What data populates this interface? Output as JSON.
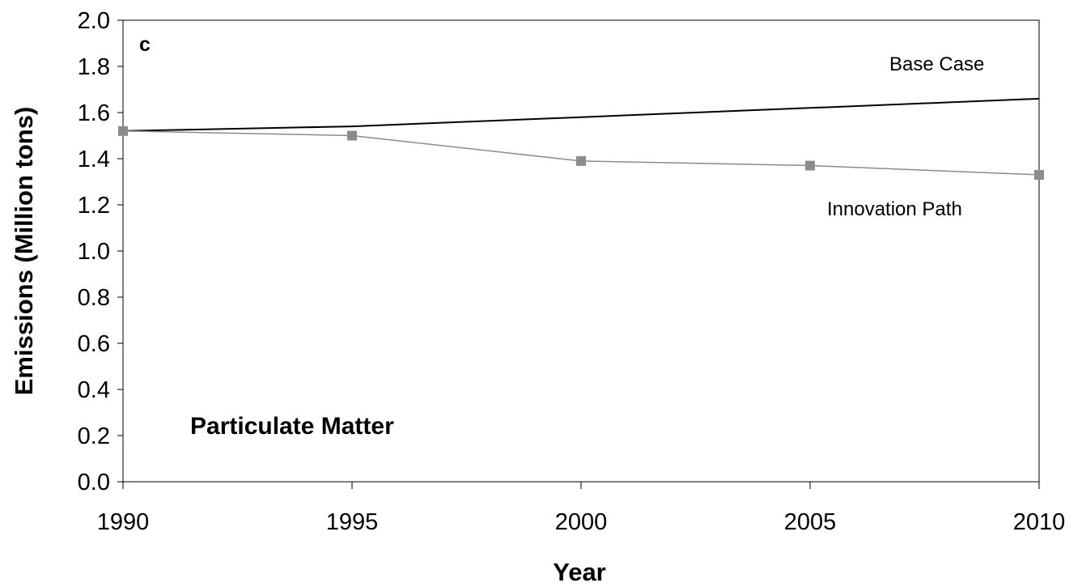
{
  "chart_data": {
    "type": "line",
    "title": "Particulate Matter",
    "panel_label": "c",
    "xlabel": "Year",
    "ylabel": "Emissions (Million tons)",
    "xlim": [
      1990,
      2010
    ],
    "ylim": [
      0,
      2.0
    ],
    "x_ticks": [
      1990,
      1995,
      2000,
      2005,
      2010
    ],
    "x_tick_labels": [
      "1990",
      "1995",
      "2000",
      "2005",
      "2010"
    ],
    "y_ticks": [
      0,
      0.2,
      0.4,
      0.6,
      0.8,
      1.0,
      1.2,
      1.4,
      1.6,
      1.8,
      2.0
    ],
    "y_tick_labels": [
      "0.0",
      "0.2",
      "0.4",
      "0.6",
      "0.8",
      "1.0",
      "1.2",
      "1.4",
      "1.6",
      "1.8",
      "2.0"
    ],
    "grid": false,
    "legend": "none",
    "series": [
      {
        "name": "Base Case",
        "color": "#000000",
        "markers": false,
        "x": [
          1990,
          1995,
          2000,
          2005,
          2010
        ],
        "values": [
          1.52,
          1.54,
          1.58,
          1.62,
          1.66
        ]
      },
      {
        "name": "Innovation Path",
        "color": "#8c8c8c",
        "markers": true,
        "x": [
          1990,
          1995,
          2000,
          2005,
          2010
        ],
        "values": [
          1.52,
          1.5,
          1.39,
          1.37,
          1.33
        ]
      }
    ]
  }
}
